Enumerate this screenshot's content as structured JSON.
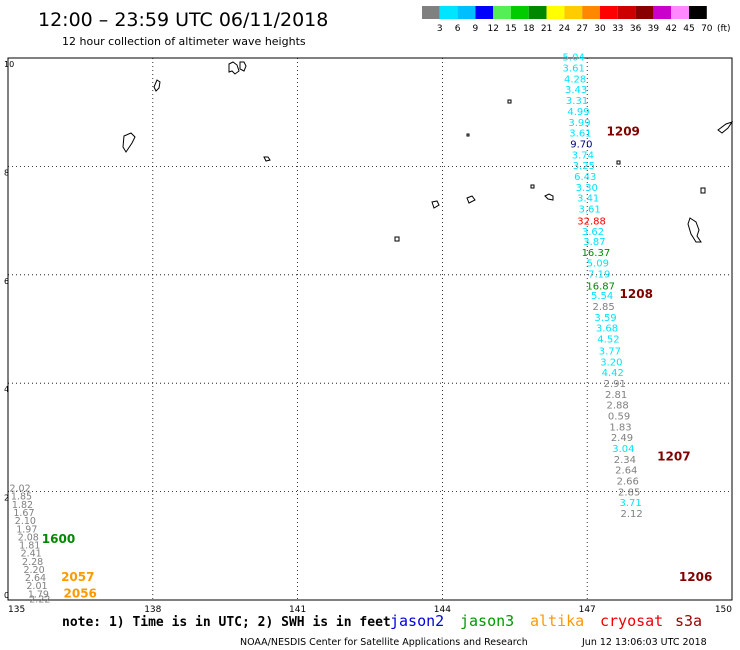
{
  "header": {
    "title": "12:00 – 23:59 UTC 06/11/2018",
    "subtitle": "12 hour collection of altimeter wave heights"
  },
  "legend": {
    "unit": "(ft)",
    "bins": [
      {
        "label": "3",
        "color": "#808080"
      },
      {
        "label": "6",
        "color": "#00e5ff"
      },
      {
        "label": "9",
        "color": "#00bfff"
      },
      {
        "label": "12",
        "color": "#0000ff"
      },
      {
        "label": "15",
        "color": "#55ee55"
      },
      {
        "label": "18",
        "color": "#00cc00"
      },
      {
        "label": "21",
        "color": "#008800"
      },
      {
        "label": "24",
        "color": "#ffff00"
      },
      {
        "label": "27",
        "color": "#ffcc00"
      },
      {
        "label": "30",
        "color": "#ff8800"
      },
      {
        "label": "33",
        "color": "#ff0000"
      },
      {
        "label": "36",
        "color": "#cc0000"
      },
      {
        "label": "39",
        "color": "#880000"
      },
      {
        "label": "42",
        "color": "#cc00cc"
      },
      {
        "label": "45",
        "color": "#ff88ff"
      },
      {
        "label": "70",
        "color": "#000000"
      }
    ]
  },
  "map": {
    "x_ticks": [
      "135",
      "138",
      "141",
      "144",
      "147",
      "150"
    ],
    "y_ticks": [
      "0",
      "2",
      "4",
      "6",
      "8",
      "10"
    ],
    "xlim": [
      135,
      150
    ],
    "ylim": [
      0,
      10
    ],
    "grid": true
  },
  "colors": {
    "gray": "#808080",
    "cyan": "#00e5ff",
    "navy": "#000080",
    "green": "#008800",
    "red": "#ff0000",
    "orange": "#ff9900",
    "dark_red": "#800000"
  },
  "tracks": {
    "right": [
      {
        "lon": 146.72,
        "lat": 9.95,
        "value": "5.04",
        "color": "cyan"
      },
      {
        "lon": 146.72,
        "lat": 9.75,
        "value": "3.61",
        "color": "cyan"
      },
      {
        "lon": 146.75,
        "lat": 9.55,
        "value": "4.28",
        "color": "cyan"
      },
      {
        "lon": 146.77,
        "lat": 9.35,
        "value": "3.43",
        "color": "cyan"
      },
      {
        "lon": 146.79,
        "lat": 9.15,
        "value": "3.31",
        "color": "cyan"
      },
      {
        "lon": 146.82,
        "lat": 8.95,
        "value": "4.99",
        "color": "cyan"
      },
      {
        "lon": 146.84,
        "lat": 8.75,
        "value": "3.99",
        "color": "cyan"
      },
      {
        "lon": 146.86,
        "lat": 8.55,
        "value": "3.61",
        "color": "cyan"
      },
      {
        "lon": 146.88,
        "lat": 8.35,
        "value": "9.70",
        "color": "navy"
      },
      {
        "lon": 146.91,
        "lat": 8.15,
        "value": "3.74",
        "color": "cyan"
      },
      {
        "lon": 146.93,
        "lat": 7.95,
        "value": "3.25",
        "color": "cyan"
      },
      {
        "lon": 146.96,
        "lat": 7.75,
        "value": "6.43",
        "color": "cyan"
      },
      {
        "lon": 146.99,
        "lat": 7.55,
        "value": "3.30",
        "color": "cyan"
      },
      {
        "lon": 147.02,
        "lat": 7.35,
        "value": "3.41",
        "color": "cyan"
      },
      {
        "lon": 147.05,
        "lat": 7.15,
        "value": "3.61",
        "color": "cyan"
      },
      {
        "lon": 147.09,
        "lat": 6.93,
        "value": "32.88",
        "color": "red"
      },
      {
        "lon": 147.12,
        "lat": 6.73,
        "value": "3.62",
        "color": "cyan"
      },
      {
        "lon": 147.15,
        "lat": 6.55,
        "value": "3.87",
        "color": "cyan"
      },
      {
        "lon": 147.18,
        "lat": 6.35,
        "value": "16.37",
        "color": "green"
      },
      {
        "lon": 147.22,
        "lat": 6.15,
        "value": "5.09",
        "color": "cyan"
      },
      {
        "lon": 147.25,
        "lat": 5.95,
        "value": "7.19",
        "color": "cyan"
      },
      {
        "lon": 147.28,
        "lat": 5.73,
        "value": "16.87",
        "color": "green"
      },
      {
        "lon": 147.31,
        "lat": 5.55,
        "value": "5.54",
        "color": "cyan"
      },
      {
        "lon": 147.34,
        "lat": 5.35,
        "value": "2.85",
        "color": "gray"
      },
      {
        "lon": 147.38,
        "lat": 5.15,
        "value": "3.59",
        "color": "cyan"
      },
      {
        "lon": 147.41,
        "lat": 4.95,
        "value": "3.68",
        "color": "cyan"
      },
      {
        "lon": 147.44,
        "lat": 4.75,
        "value": "4.52",
        "color": "cyan"
      },
      {
        "lon": 147.47,
        "lat": 4.53,
        "value": "3.77",
        "color": "cyan"
      },
      {
        "lon": 147.5,
        "lat": 4.33,
        "value": "3.20",
        "color": "cyan"
      },
      {
        "lon": 147.53,
        "lat": 4.13,
        "value": "4.42",
        "color": "cyan"
      },
      {
        "lon": 147.57,
        "lat": 3.93,
        "value": "2.91",
        "color": "gray"
      },
      {
        "lon": 147.6,
        "lat": 3.73,
        "value": "2.81",
        "color": "gray"
      },
      {
        "lon": 147.63,
        "lat": 3.53,
        "value": "2.88",
        "color": "gray"
      },
      {
        "lon": 147.66,
        "lat": 3.33,
        "value": "0.59",
        "color": "gray"
      },
      {
        "lon": 147.69,
        "lat": 3.13,
        "value": "1.83",
        "color": "gray"
      },
      {
        "lon": 147.72,
        "lat": 2.93,
        "value": "2.49",
        "color": "gray"
      },
      {
        "lon": 147.75,
        "lat": 2.73,
        "value": "3.04",
        "color": "cyan"
      },
      {
        "lon": 147.78,
        "lat": 2.53,
        "value": "2.34",
        "color": "gray"
      },
      {
        "lon": 147.81,
        "lat": 2.33,
        "value": "2.64",
        "color": "gray"
      },
      {
        "lon": 147.84,
        "lat": 2.13,
        "value": "2.66",
        "color": "gray"
      },
      {
        "lon": 147.87,
        "lat": 1.93,
        "value": "2.85",
        "color": "gray"
      },
      {
        "lon": 147.9,
        "lat": 1.73,
        "value": "3.71",
        "color": "cyan"
      },
      {
        "lon": 147.92,
        "lat": 1.53,
        "value": "2.12",
        "color": "gray"
      }
    ],
    "left": [
      {
        "lon": 135.25,
        "lat": 2.0,
        "value": "2.02",
        "color": "gray"
      },
      {
        "lon": 135.28,
        "lat": 1.85,
        "value": "1.85",
        "color": "gray"
      },
      {
        "lon": 135.3,
        "lat": 1.7,
        "value": "1.82",
        "color": "gray"
      },
      {
        "lon": 135.33,
        "lat": 1.55,
        "value": "1.67",
        "color": "gray"
      },
      {
        "lon": 135.36,
        "lat": 1.4,
        "value": "2.10",
        "color": "gray"
      },
      {
        "lon": 135.39,
        "lat": 1.25,
        "value": "1.97",
        "color": "gray"
      },
      {
        "lon": 135.42,
        "lat": 1.1,
        "value": "2.08",
        "color": "gray"
      },
      {
        "lon": 135.45,
        "lat": 0.95,
        "value": "1.81",
        "color": "gray"
      },
      {
        "lon": 135.48,
        "lat": 0.8,
        "value": "2.41",
        "color": "gray"
      },
      {
        "lon": 135.51,
        "lat": 0.65,
        "value": "2.28",
        "color": "gray"
      },
      {
        "lon": 135.54,
        "lat": 0.5,
        "value": "2.20",
        "color": "gray"
      },
      {
        "lon": 135.57,
        "lat": 0.35,
        "value": "2.64",
        "color": "gray"
      },
      {
        "lon": 135.6,
        "lat": 0.2,
        "value": "2.01",
        "color": "gray"
      },
      {
        "lon": 135.63,
        "lat": 0.05,
        "value": "1.79",
        "color": "gray"
      },
      {
        "lon": 135.66,
        "lat": -0.05,
        "value": "2.22",
        "color": "gray"
      }
    ]
  },
  "time_labels": [
    {
      "text": "1209",
      "lon": 147.4,
      "lat": 8.57,
      "color": "dark_red"
    },
    {
      "text": "1208",
      "lon": 147.67,
      "lat": 5.57,
      "color": "dark_red"
    },
    {
      "text": "1207",
      "lon": 148.45,
      "lat": 2.57,
      "color": "dark_red"
    },
    {
      "text": "1206",
      "lon": 148.9,
      "lat": 0.35,
      "color": "dark_red"
    },
    {
      "text": "1600",
      "lon": 135.7,
      "lat": 1.05,
      "color": "green"
    },
    {
      "text": "2057",
      "lon": 136.1,
      "lat": 0.35,
      "color": "orange"
    },
    {
      "text": "2056",
      "lon": 136.15,
      "lat": 0.05,
      "color": "orange"
    }
  ],
  "footer": {
    "note": "note: 1) Time is in UTC; 2) SWH is in feet",
    "satellites": [
      {
        "label": "jason2",
        "color": "#0000dd"
      },
      {
        "label": "jason3",
        "color": "#009900"
      },
      {
        "label": "altika",
        "color": "#ff9900"
      },
      {
        "label": "cryosat",
        "color": "#ee0000"
      },
      {
        "label": "s3a",
        "color": "#990000"
      }
    ],
    "credit": "NOAA/NESDIS Center for Satellite Applications and Research",
    "generated": "Jun 12 13:06:03 UTC 2018"
  }
}
